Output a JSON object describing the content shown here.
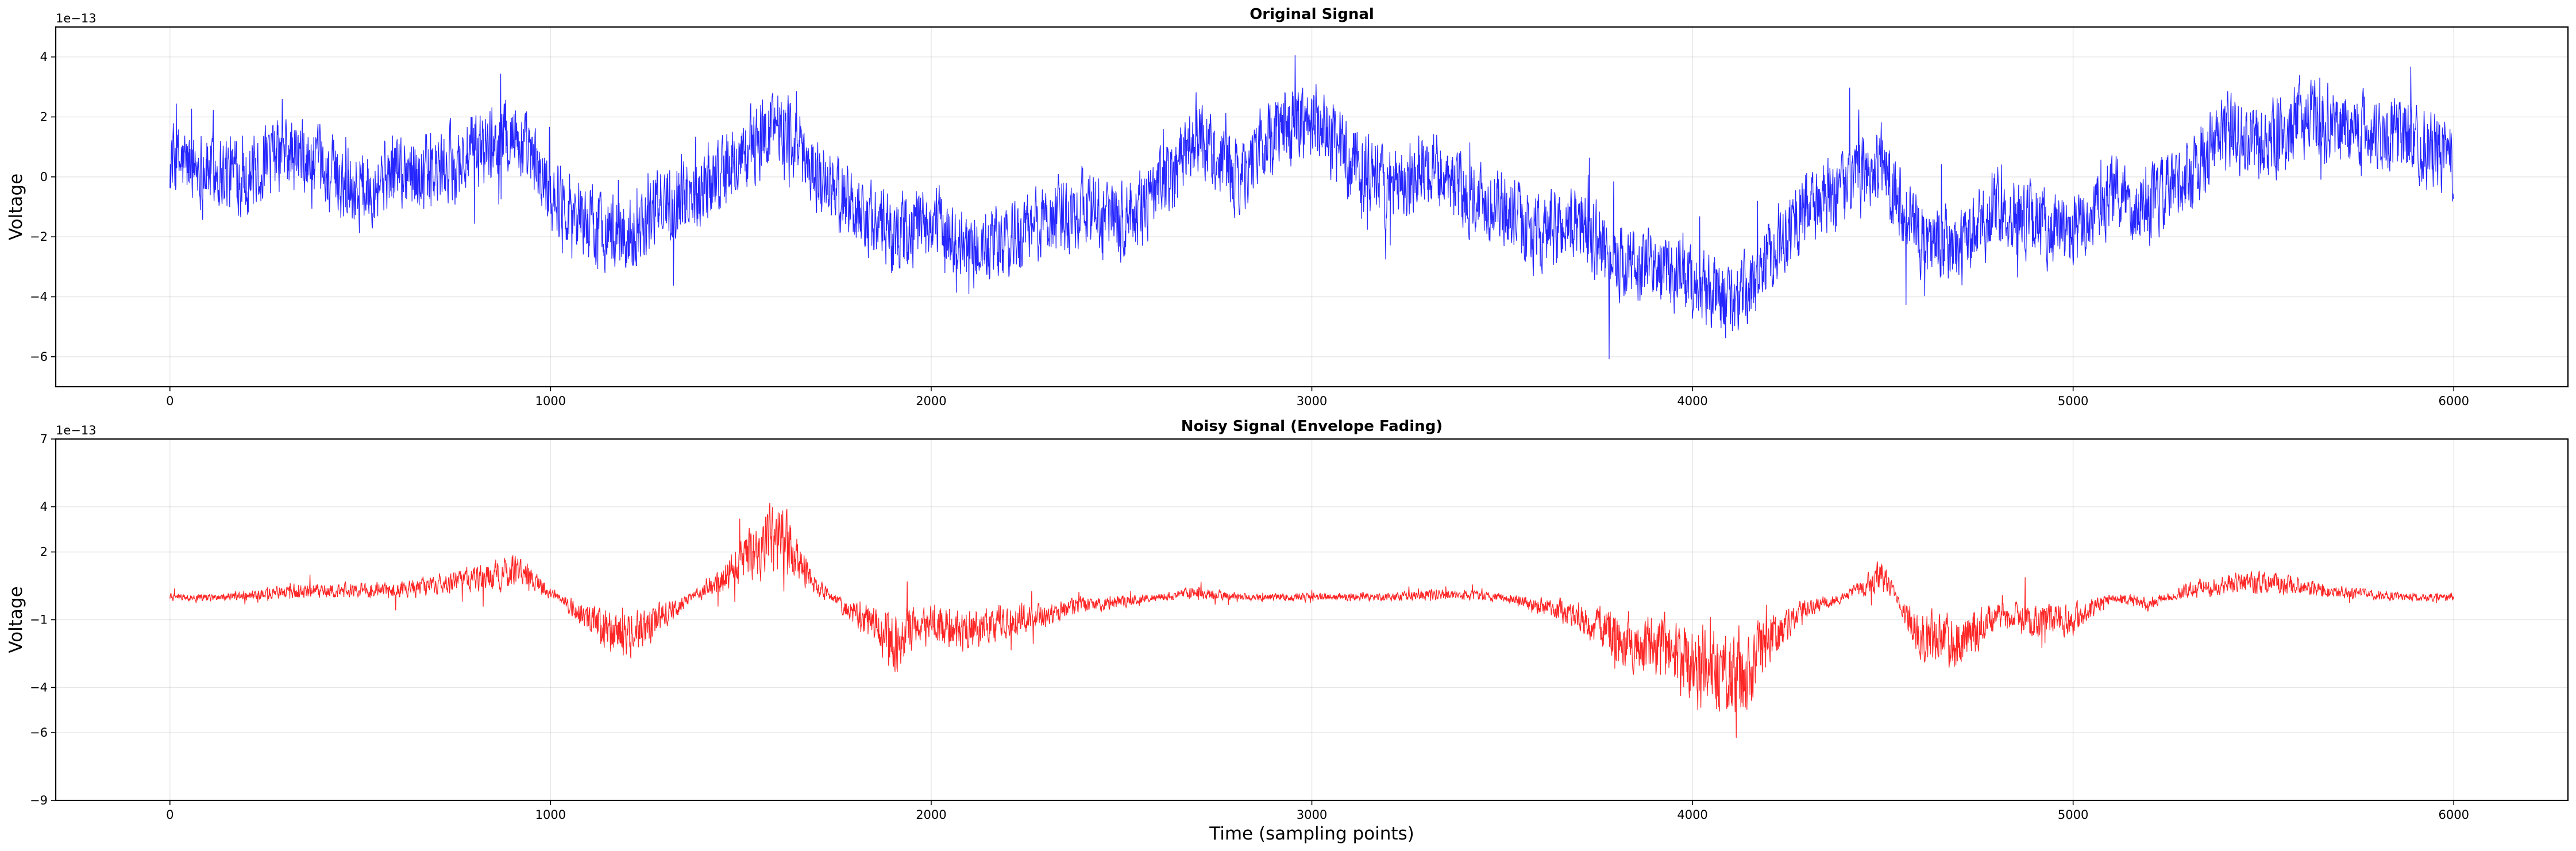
{
  "chart_data": [
    {
      "type": "line",
      "title": "Original Signal",
      "xlabel": "",
      "ylabel": "Voltage",
      "offset_text": "1e−13",
      "xlim": [
        -300,
        6300
      ],
      "ylim": [
        -7,
        5
      ],
      "xticks": [
        0,
        1000,
        2000,
        3000,
        4000,
        5000,
        6000
      ],
      "yticks": [
        -6,
        -4,
        -2,
        0,
        2,
        4
      ],
      "ytick_labels": [
        "−6",
        "−4",
        "−2",
        "0",
        "2",
        "4"
      ],
      "grid": true,
      "color": "#0000ff",
      "series": [
        {
          "x": [
            0,
            100,
            200,
            300,
            400,
            500,
            600,
            700,
            800,
            900,
            1000,
            1100,
            1200,
            1300,
            1400,
            1500,
            1600,
            1700,
            1800,
            1900,
            2000,
            2100,
            2200,
            2300,
            2400,
            2500,
            2600,
            2700,
            2800,
            2900,
            3000,
            3100,
            3200,
            3300,
            3400,
            3500,
            3600,
            3700,
            3800,
            3900,
            4000,
            4100,
            4150,
            4200,
            4300,
            4400,
            4500,
            4600,
            4700,
            4800,
            4900,
            5000,
            5100,
            5200,
            5300,
            5400,
            5500,
            5600,
            5700,
            5800,
            5900,
            6000
          ],
          "y": [
            0.5,
            0.3,
            0.0,
            0.8,
            0.2,
            -0.4,
            0.3,
            0.1,
            0.8,
            1.5,
            -0.5,
            -1.5,
            -2.0,
            -0.8,
            -0.3,
            0.6,
            2.0,
            0.0,
            -1.0,
            -2.0,
            -1.5,
            -2.5,
            -2.2,
            -1.5,
            -1.0,
            -1.5,
            -0.5,
            1.5,
            0.0,
            1.5,
            2.0,
            0.5,
            -0.5,
            0.5,
            -0.5,
            -1.0,
            -2.0,
            -1.5,
            -2.8,
            -3.0,
            -3.5,
            -4.2,
            -3.8,
            -2.5,
            -1.0,
            -0.5,
            0.5,
            -2.0,
            -2.5,
            -1.0,
            -1.5,
            -2.0,
            -0.5,
            -1.0,
            0.0,
            1.5,
            1.0,
            2.0,
            1.8,
            1.5,
            1.2,
            0.5
          ]
        }
      ]
    },
    {
      "type": "line",
      "title": "Noisy Signal (Envelope Fading)",
      "xlabel": "Time (sampling points)",
      "ylabel": "Voltage",
      "offset_text": "1e−13",
      "xlim": [
        -300,
        6300
      ],
      "ylim": [
        -9,
        7
      ],
      "xticks": [
        0,
        1000,
        2000,
        3000,
        4000,
        5000,
        6000
      ],
      "yticks": [
        -9,
        -6,
        -4,
        -1,
        2,
        4,
        7
      ],
      "ytick_labels": [
        "−9",
        "−6",
        "−4",
        "−1",
        "2",
        "4",
        "7"
      ],
      "grid": true,
      "color": "#ff0000",
      "series": [
        {
          "x": [
            0,
            100,
            200,
            300,
            400,
            500,
            600,
            700,
            800,
            900,
            1000,
            1100,
            1200,
            1300,
            1400,
            1500,
            1600,
            1700,
            1800,
            1900,
            2000,
            2100,
            2200,
            2300,
            2400,
            2500,
            2600,
            2700,
            2800,
            2900,
            3000,
            3100,
            3200,
            3300,
            3400,
            3500,
            3600,
            3700,
            3800,
            3900,
            4000,
            4100,
            4150,
            4200,
            4300,
            4400,
            4500,
            4600,
            4700,
            4800,
            4900,
            5000,
            5100,
            5200,
            5300,
            5400,
            5500,
            5600,
            5700,
            5800,
            5900,
            6000
          ],
          "y": [
            0.0,
            0.0,
            0.1,
            0.2,
            0.3,
            0.3,
            0.4,
            0.5,
            0.8,
            1.2,
            0.2,
            -1.0,
            -1.8,
            -0.8,
            0.3,
            1.5,
            2.8,
            0.5,
            -0.8,
            -2.0,
            -1.2,
            -1.5,
            -1.0,
            -0.8,
            -0.3,
            -0.2,
            0.0,
            0.2,
            0.0,
            0.0,
            0.0,
            0.0,
            0.0,
            0.1,
            0.1,
            0.0,
            -0.4,
            -0.8,
            -1.8,
            -2.2,
            -3.0,
            -3.8,
            -3.2,
            -2.0,
            -0.5,
            0.0,
            1.0,
            -1.8,
            -2.0,
            -0.8,
            -1.0,
            -1.0,
            0.0,
            -0.3,
            0.3,
            0.6,
            0.6,
            0.5,
            0.2,
            0.1,
            0.0,
            0.0
          ]
        }
      ]
    }
  ]
}
